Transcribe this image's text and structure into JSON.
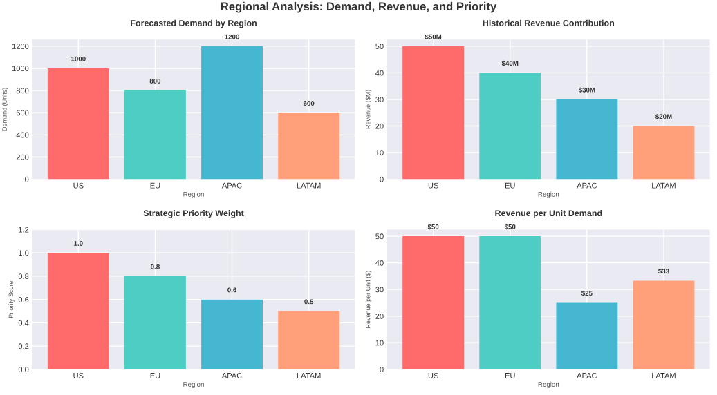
{
  "chart_data": [
    {
      "type": "bar",
      "title": "Forecasted Demand by Region",
      "xlabel": "Region",
      "ylabel": "Demand (Units)",
      "annotations": [
        "Regional Analysis: Demand, Revenue, and Priority"
      ],
      "categories": [
        "US",
        "EU",
        "APAC",
        "LATAM"
      ],
      "values": [
        1000,
        800,
        1200,
        600
      ],
      "colors": [
        "#ff6b6b",
        "#4ecdc4",
        "#45b7d1",
        "#ffa07a"
      ],
      "value_labels": [
        "1000",
        "800",
        "1200",
        "600"
      ],
      "ylim": [
        0,
        1260
      ],
      "yticks": [
        0,
        200,
        400,
        600,
        800,
        1000,
        1200
      ],
      "grid": true
    },
    {
      "type": "bar",
      "title": "Historical Revenue Contribution",
      "xlabel": "Region",
      "ylabel": "Revenue ($M)",
      "categories": [
        "US",
        "EU",
        "APAC",
        "LATAM"
      ],
      "values": [
        50,
        40,
        30,
        20
      ],
      "colors": [
        "#ff6b6b",
        "#4ecdc4",
        "#45b7d1",
        "#ffa07a"
      ],
      "value_labels": [
        "$50M",
        "$40M",
        "$30M",
        "$20M"
      ],
      "ylim": [
        0,
        52.5
      ],
      "yticks": [
        0,
        10,
        20,
        30,
        40,
        50
      ],
      "grid": true
    },
    {
      "type": "bar",
      "title": "Strategic Priority Weight",
      "xlabel": "Region",
      "ylabel": "Priority Score",
      "categories": [
        "US",
        "EU",
        "APAC",
        "LATAM"
      ],
      "values": [
        1.0,
        0.8,
        0.6,
        0.5
      ],
      "colors": [
        "#ff6b6b",
        "#4ecdc4",
        "#45b7d1",
        "#ffa07a"
      ],
      "value_labels": [
        "1.0",
        "0.8",
        "0.6",
        "0.5"
      ],
      "ylim": [
        0,
        1.2
      ],
      "yticks": [
        {
          "value": 0,
          "label": "0.0"
        },
        0.2,
        0.4,
        0.6,
        0.8,
        {
          "value": 1,
          "label": "1.0"
        },
        1.2
      ],
      "grid": true
    },
    {
      "type": "bar",
      "title": "Revenue per Unit Demand",
      "xlabel": "Region",
      "ylabel": "Revenue per Unit ($)",
      "categories": [
        "US",
        "EU",
        "APAC",
        "LATAM"
      ],
      "values": [
        50,
        50,
        25,
        33.3
      ],
      "colors": [
        "#ff6b6b",
        "#4ecdc4",
        "#45b7d1",
        "#ffa07a"
      ],
      "value_labels": [
        "$50",
        "$50",
        "$25",
        "$33"
      ],
      "ylim": [
        0,
        52.5
      ],
      "yticks": [
        0,
        10,
        20,
        30,
        40,
        50
      ],
      "grid": true
    }
  ]
}
